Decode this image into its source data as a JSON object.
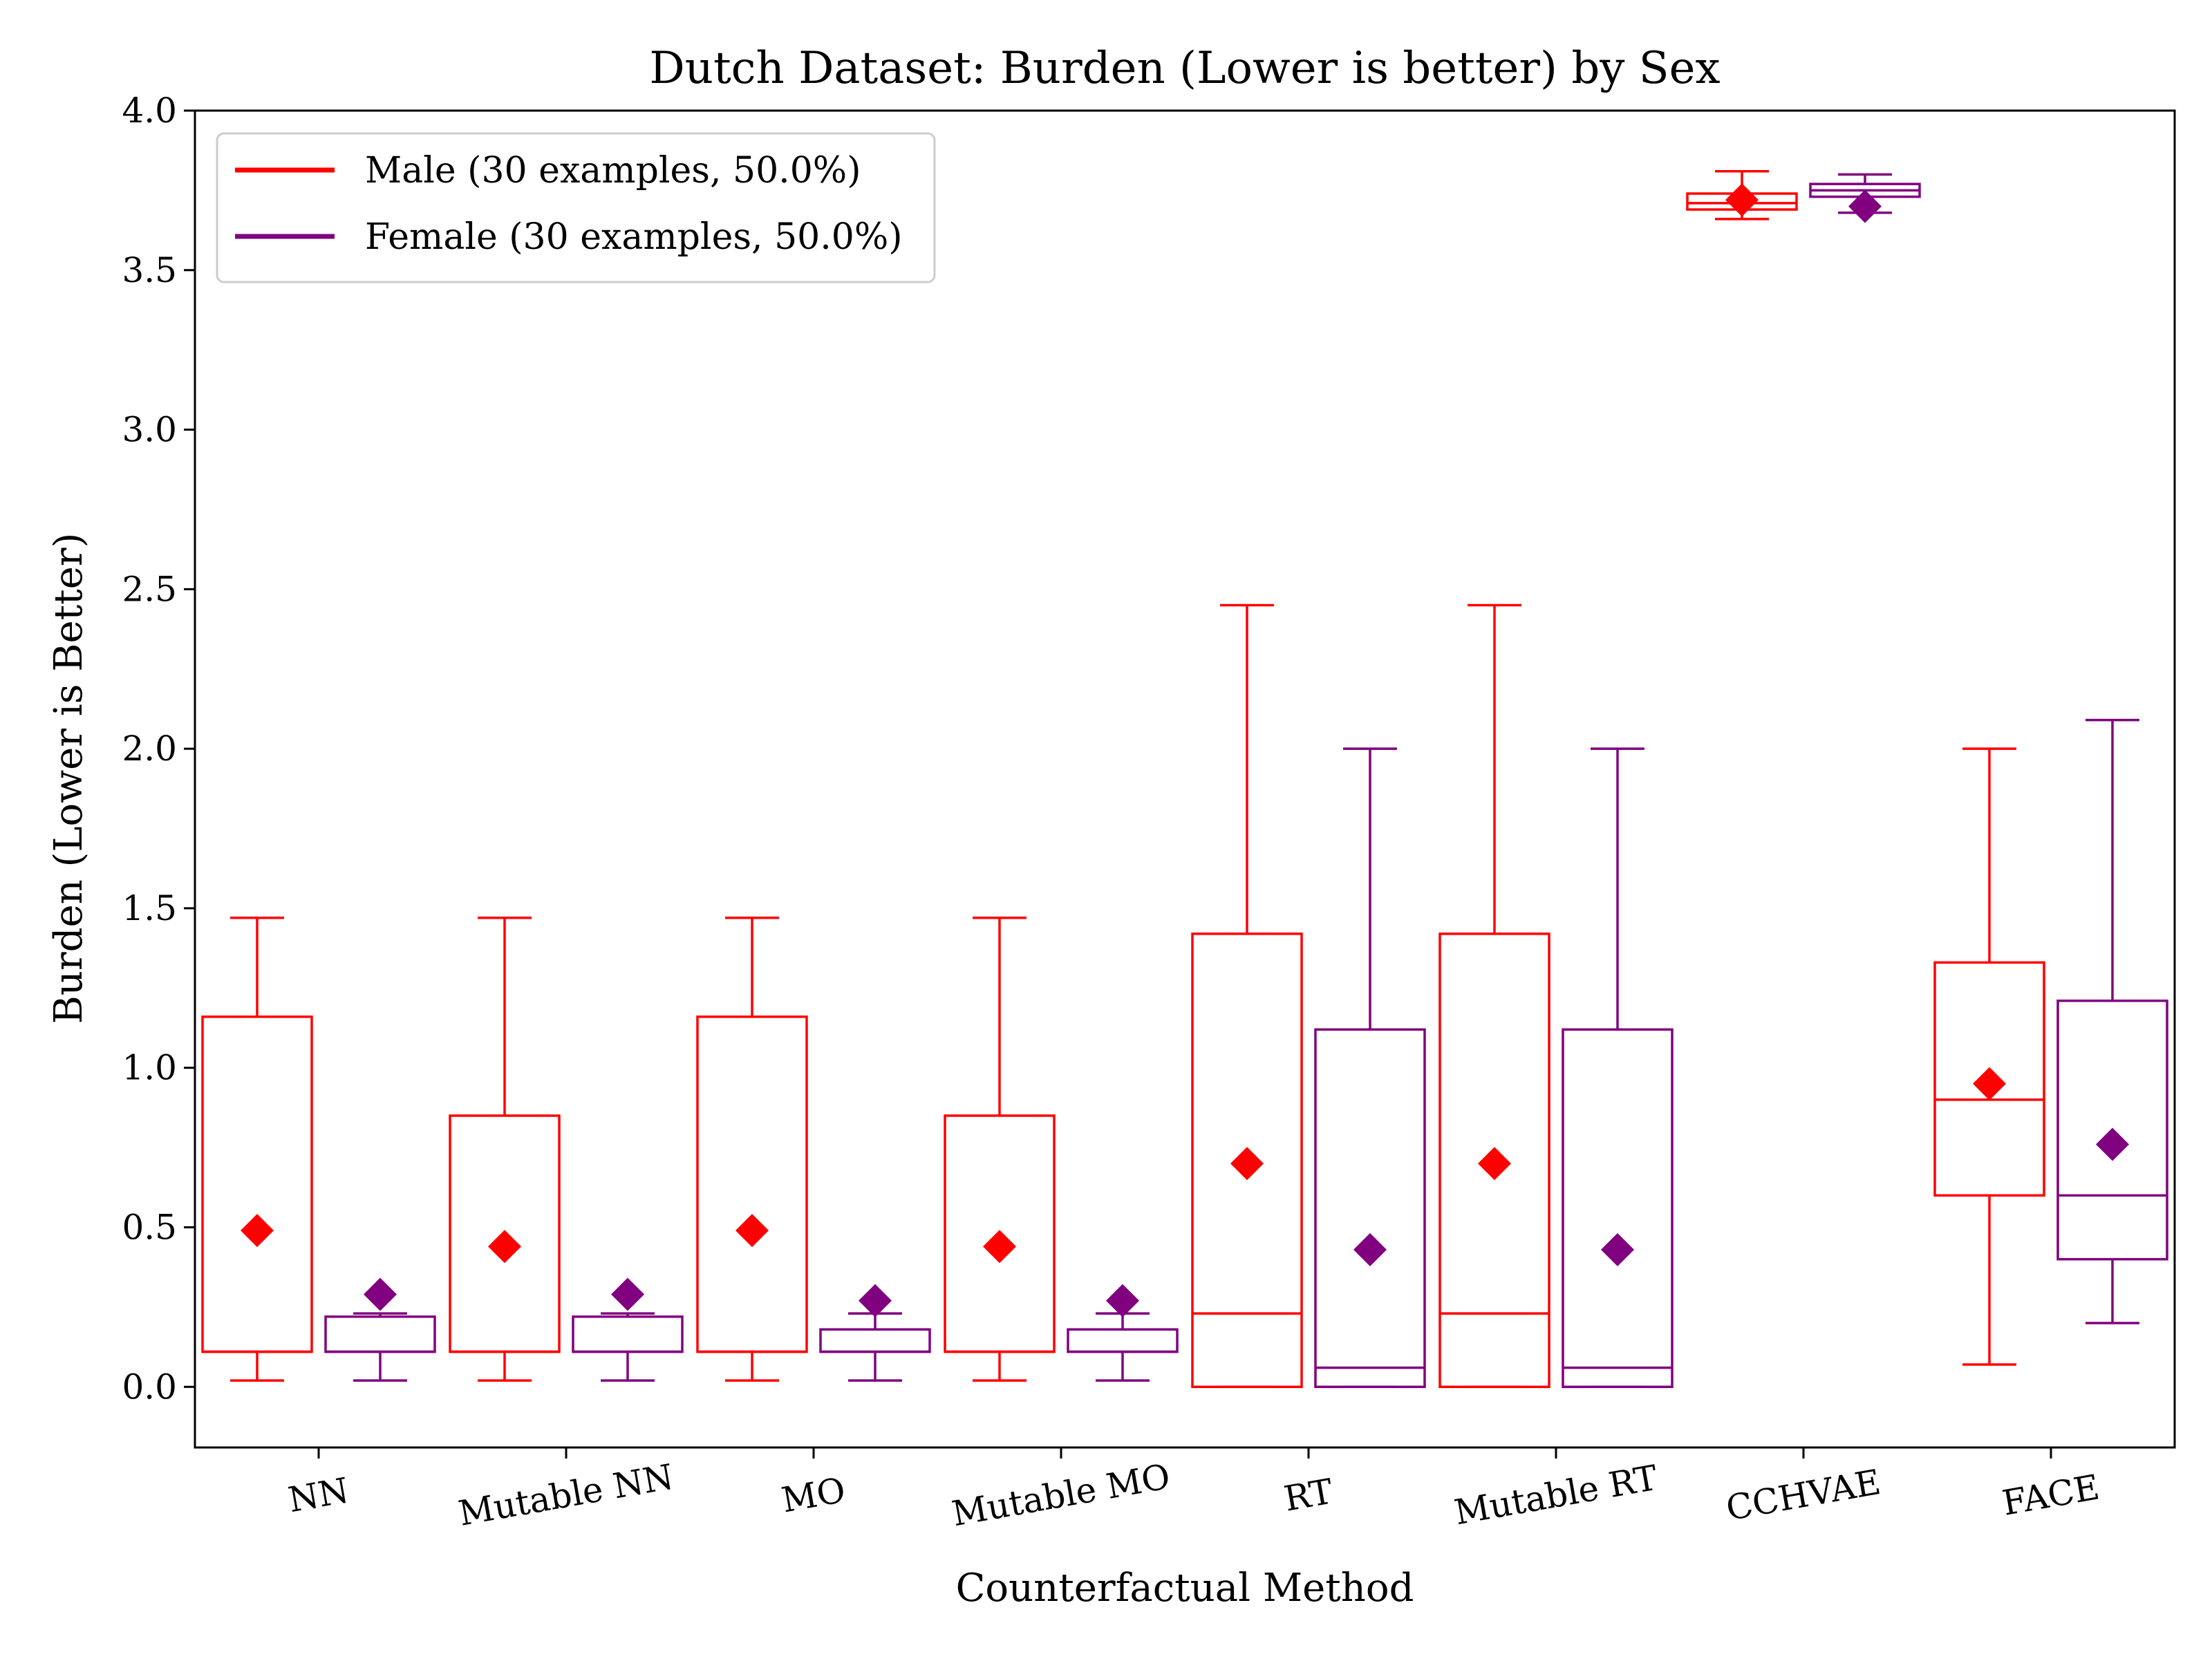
{
  "chart_data": {
    "type": "box",
    "title": "Dutch Dataset: Burden (Lower is better) by Sex",
    "xlabel": "Counterfactual Method",
    "ylabel": "Burden (Lower is Better)",
    "ylim": [
      -0.19,
      4.0
    ],
    "yticks": [
      "0.0",
      "0.5",
      "1.0",
      "1.5",
      "2.0",
      "2.5",
      "3.0",
      "3.5",
      "4.0"
    ],
    "grid": false,
    "legend_position": "top-left",
    "categories": [
      "NN",
      "Mutable NN",
      "MO",
      "Mutable MO",
      "RT",
      "Mutable RT",
      "CCHVAE",
      "FACE"
    ],
    "series": [
      {
        "name": "Male (30 examples, 50.0%)",
        "color": "#ff0000",
        "boxes": [
          {
            "whislo": 0.02,
            "q1": 0.11,
            "med": 0.11,
            "q3": 1.16,
            "whishi": 1.47,
            "mean": 0.49
          },
          {
            "whislo": 0.02,
            "q1": 0.11,
            "med": 0.11,
            "q3": 0.85,
            "whishi": 1.47,
            "mean": 0.44
          },
          {
            "whislo": 0.02,
            "q1": 0.11,
            "med": 0.11,
            "q3": 1.16,
            "whishi": 1.47,
            "mean": 0.49
          },
          {
            "whislo": 0.02,
            "q1": 0.11,
            "med": 0.11,
            "q3": 0.85,
            "whishi": 1.47,
            "mean": 0.44
          },
          {
            "whislo": 0.0,
            "q1": 0.0,
            "med": 0.23,
            "q3": 1.42,
            "whishi": 2.45,
            "mean": 0.7
          },
          {
            "whislo": 0.0,
            "q1": 0.0,
            "med": 0.23,
            "q3": 1.42,
            "whishi": 2.45,
            "mean": 0.7
          },
          {
            "whislo": 3.66,
            "q1": 3.69,
            "med": 3.71,
            "q3": 3.74,
            "whishi": 3.81,
            "mean": 3.72
          },
          {
            "whislo": 0.07,
            "q1": 0.6,
            "med": 0.9,
            "q3": 1.33,
            "whishi": 2.0,
            "mean": 0.95
          }
        ]
      },
      {
        "name": "Female (30 examples, 50.0%)",
        "color": "#800080",
        "boxes": [
          {
            "whislo": 0.02,
            "q1": 0.11,
            "med": 0.11,
            "q3": 0.22,
            "whishi": 0.23,
            "mean": 0.29
          },
          {
            "whislo": 0.02,
            "q1": 0.11,
            "med": 0.11,
            "q3": 0.22,
            "whishi": 0.23,
            "mean": 0.29
          },
          {
            "whislo": 0.02,
            "q1": 0.11,
            "med": 0.11,
            "q3": 0.18,
            "whishi": 0.23,
            "mean": 0.27
          },
          {
            "whislo": 0.02,
            "q1": 0.11,
            "med": 0.11,
            "q3": 0.18,
            "whishi": 0.23,
            "mean": 0.27
          },
          {
            "whislo": 0.0,
            "q1": 0.0,
            "med": 0.06,
            "q3": 1.12,
            "whishi": 2.0,
            "mean": 0.43
          },
          {
            "whislo": 0.0,
            "q1": 0.0,
            "med": 0.06,
            "q3": 1.12,
            "whishi": 2.0,
            "mean": 0.43
          },
          {
            "whislo": 3.68,
            "q1": 3.73,
            "med": 3.75,
            "q3": 3.77,
            "whishi": 3.8,
            "mean": 3.7
          },
          {
            "whislo": 0.2,
            "q1": 0.4,
            "med": 0.6,
            "q3": 1.21,
            "whishi": 2.09,
            "mean": 0.76
          }
        ]
      }
    ]
  }
}
